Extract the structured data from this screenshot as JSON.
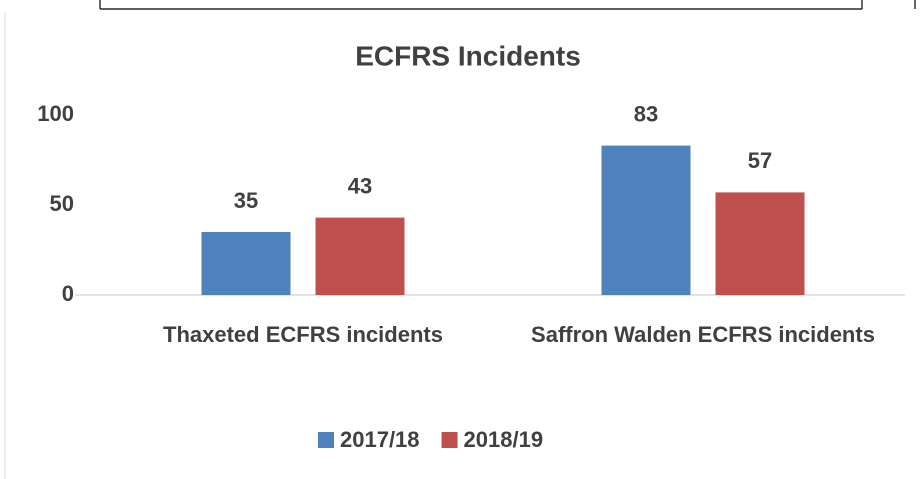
{
  "chart_data": {
    "type": "bar",
    "title": "ECFRS Incidents",
    "categories": [
      "Thaxeted ECFRS incidents",
      "Saffron Walden ECFRS incidents"
    ],
    "series": [
      {
        "name": "2017/18",
        "color": "#4f81bd",
        "values": [
          35,
          83
        ]
      },
      {
        "name": "2018/19",
        "color": "#c0504d",
        "values": [
          43,
          57
        ]
      }
    ],
    "ylim": [
      0,
      100
    ],
    "yticks": [
      0,
      50,
      100
    ],
    "grid": false,
    "legend": "bottom"
  }
}
